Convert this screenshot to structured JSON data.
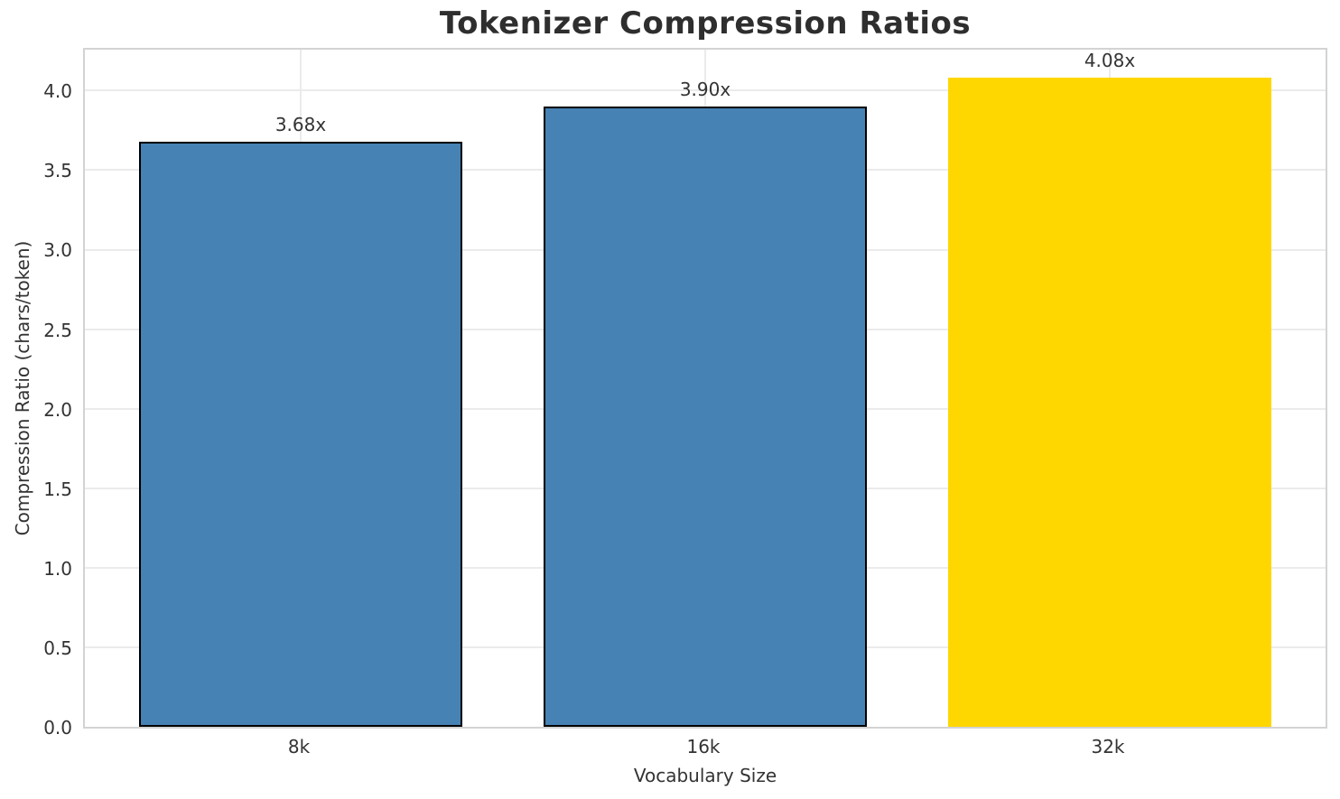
{
  "chart_data": {
    "type": "bar",
    "title": "Tokenizer Compression Ratios",
    "xlabel": "Vocabulary Size",
    "ylabel": "Compression Ratio (chars/token)",
    "categories": [
      "8k",
      "16k",
      "32k"
    ],
    "values": [
      3.68,
      3.9,
      4.08
    ],
    "bar_labels": [
      "3.68x",
      "3.90x",
      "4.08x"
    ],
    "yticks": [
      "0.0",
      "0.5",
      "1.0",
      "1.5",
      "2.0",
      "2.5",
      "3.0",
      "3.5",
      "4.0"
    ],
    "ylim": [
      0,
      4.28
    ],
    "grid": true,
    "legend_position": "none",
    "bar_colors": [
      "#4682B4",
      "#4682B4",
      "#FFD700"
    ],
    "bar_edge_colors": [
      "#000000",
      "#000000",
      "#FFD700"
    ],
    "highlight_index": 2
  },
  "style": {
    "background": "#FFFFFF",
    "grid_color": "#EBEBEB",
    "spine_color": "#D3D3D3",
    "text_color": "#333333",
    "title_color": "#2E2E2E"
  }
}
